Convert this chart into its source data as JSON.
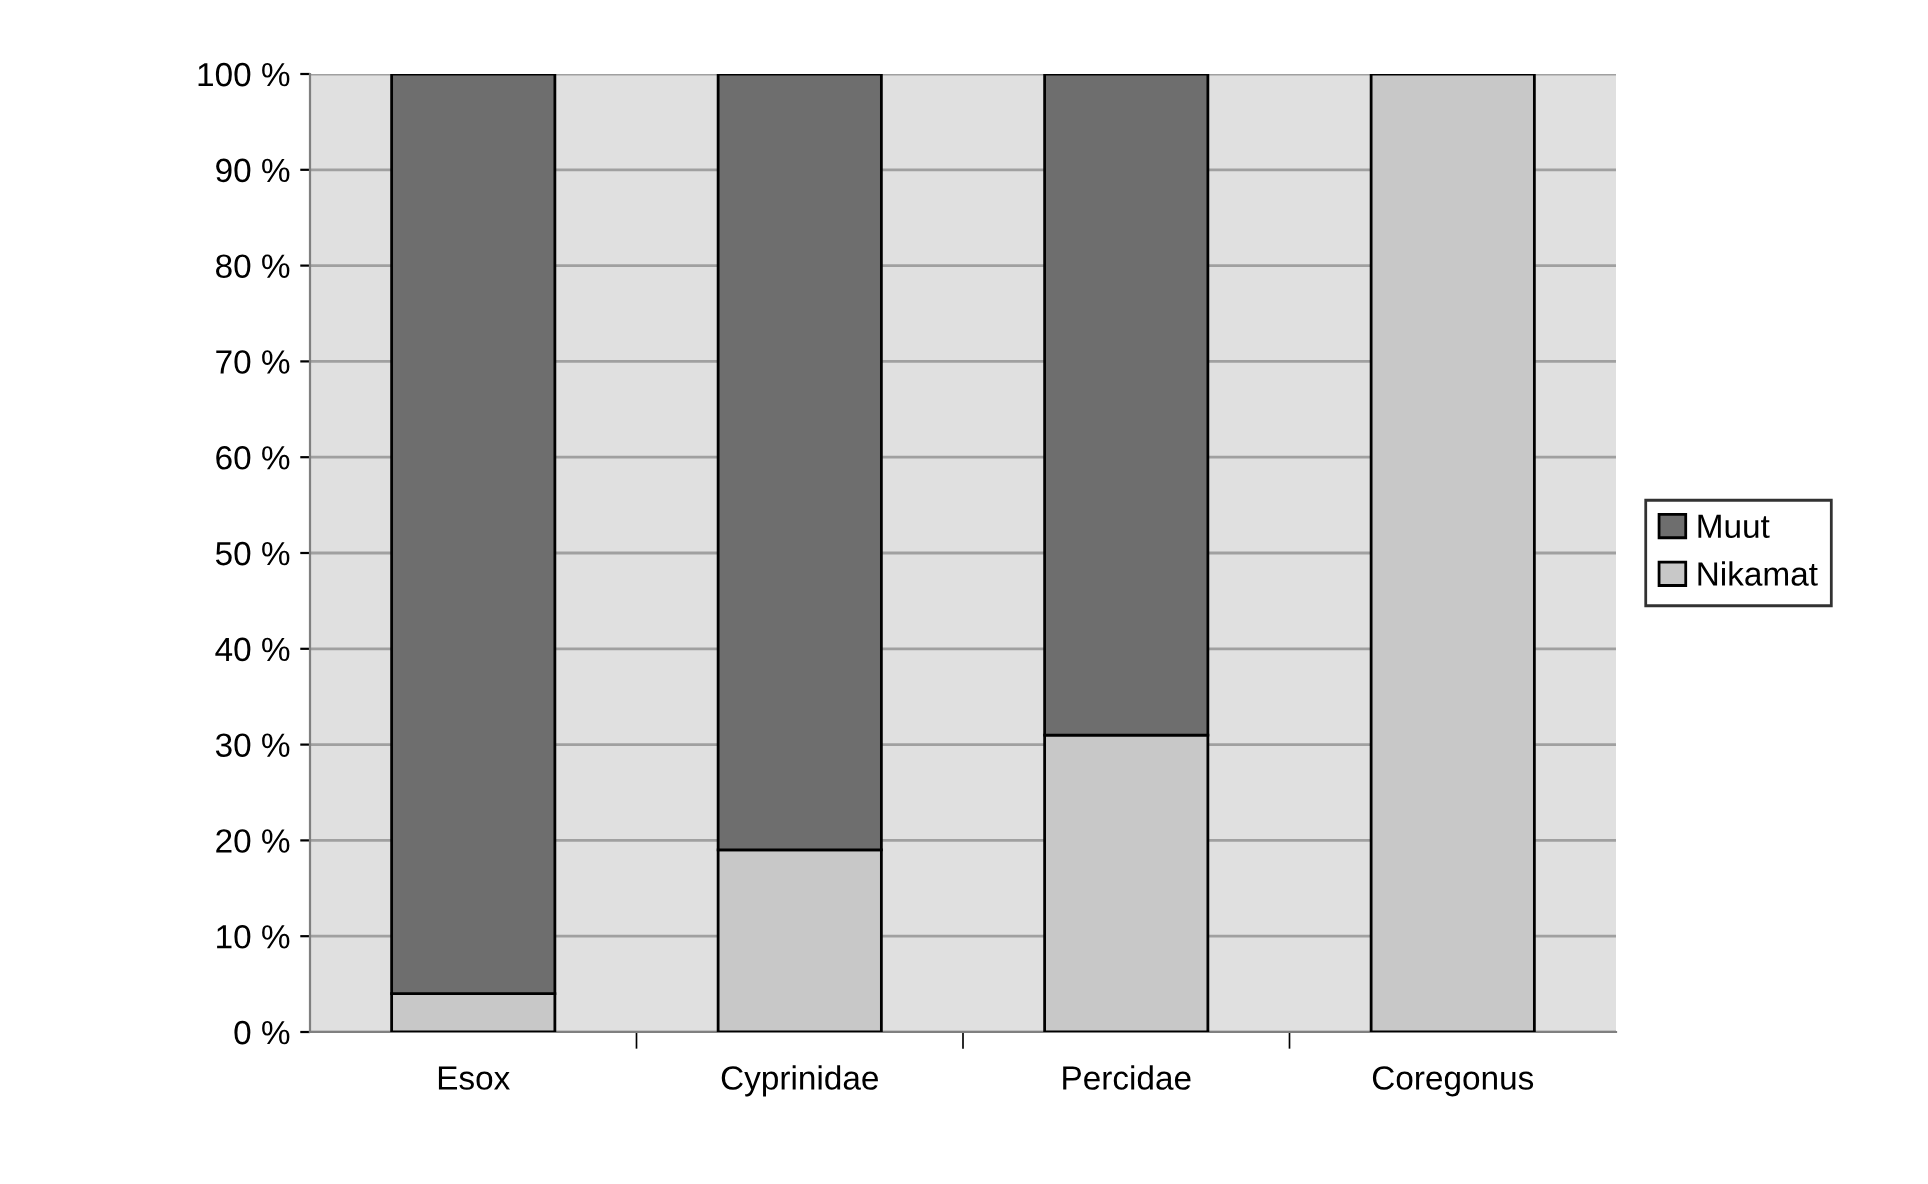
{
  "chart_data": {
    "type": "bar",
    "stacked": true,
    "categories": [
      "Esox",
      "Cyprinidae",
      "Percidae",
      "Coregonus"
    ],
    "series": [
      {
        "name": "Nikamat",
        "color": "#c8c8c8",
        "values": [
          4,
          19,
          31,
          100
        ]
      },
      {
        "name": "Muut",
        "color": "#6e6e6e",
        "values": [
          96,
          81,
          69,
          null
        ]
      }
    ],
    "ylim": [
      0,
      100
    ],
    "yticks": [
      {
        "value": 0,
        "label": "0 %"
      },
      {
        "value": 10,
        "label": "10 %"
      },
      {
        "value": 20,
        "label": "20 %"
      },
      {
        "value": 30,
        "label": "30 %"
      },
      {
        "value": 40,
        "label": "40 %"
      },
      {
        "value": 50,
        "label": "50 %"
      },
      {
        "value": 60,
        "label": "60 %"
      },
      {
        "value": 70,
        "label": "70 %"
      },
      {
        "value": 80,
        "label": "80 %"
      },
      {
        "value": 90,
        "label": "90 %"
      },
      {
        "value": 100,
        "label": "100 %"
      }
    ],
    "grid": "y",
    "legend": "right"
  }
}
